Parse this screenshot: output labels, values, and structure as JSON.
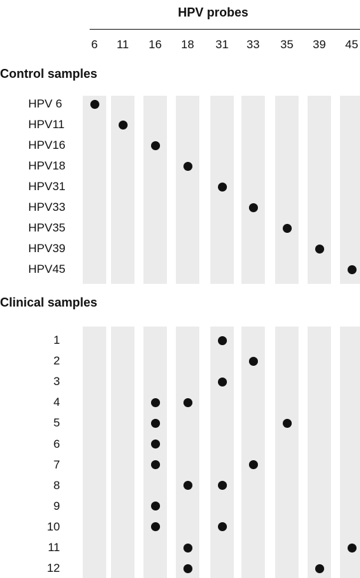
{
  "header": {
    "title": "HPV probes"
  },
  "probes": [
    "6",
    "11",
    "16",
    "18",
    "31",
    "33",
    "35",
    "39",
    "45"
  ],
  "control": {
    "label": "Control samples",
    "rows": [
      {
        "label": "HPV 6",
        "hits": [
          "6"
        ]
      },
      {
        "label": "HPV11",
        "hits": [
          "11"
        ]
      },
      {
        "label": "HPV16",
        "hits": [
          "16"
        ]
      },
      {
        "label": "HPV18",
        "hits": [
          "18"
        ]
      },
      {
        "label": "HPV31",
        "hits": [
          "31"
        ]
      },
      {
        "label": "HPV33",
        "hits": [
          "33"
        ]
      },
      {
        "label": "HPV35",
        "hits": [
          "35"
        ]
      },
      {
        "label": "HPV39",
        "hits": [
          "39"
        ]
      },
      {
        "label": "HPV45",
        "hits": [
          "45"
        ]
      }
    ]
  },
  "clinical": {
    "label": "Clinical samples",
    "rows": [
      {
        "label": "1",
        "hits": [
          "31"
        ]
      },
      {
        "label": "2",
        "hits": [
          "33"
        ]
      },
      {
        "label": "3",
        "hits": [
          "31"
        ]
      },
      {
        "label": "4",
        "hits": [
          "16",
          "18"
        ]
      },
      {
        "label": "5",
        "hits": [
          "16",
          "35"
        ]
      },
      {
        "label": "6",
        "hits": [
          "16"
        ]
      },
      {
        "label": "7",
        "hits": [
          "16",
          "33"
        ]
      },
      {
        "label": "8",
        "hits": [
          "18",
          "31"
        ]
      },
      {
        "label": "9",
        "hits": [
          "16"
        ]
      },
      {
        "label": "10",
        "hits": [
          "16",
          "31"
        ]
      },
      {
        "label": "11",
        "hits": [
          "18",
          "45"
        ]
      },
      {
        "label": "12",
        "hits": [
          "18",
          "39"
        ]
      }
    ]
  }
}
